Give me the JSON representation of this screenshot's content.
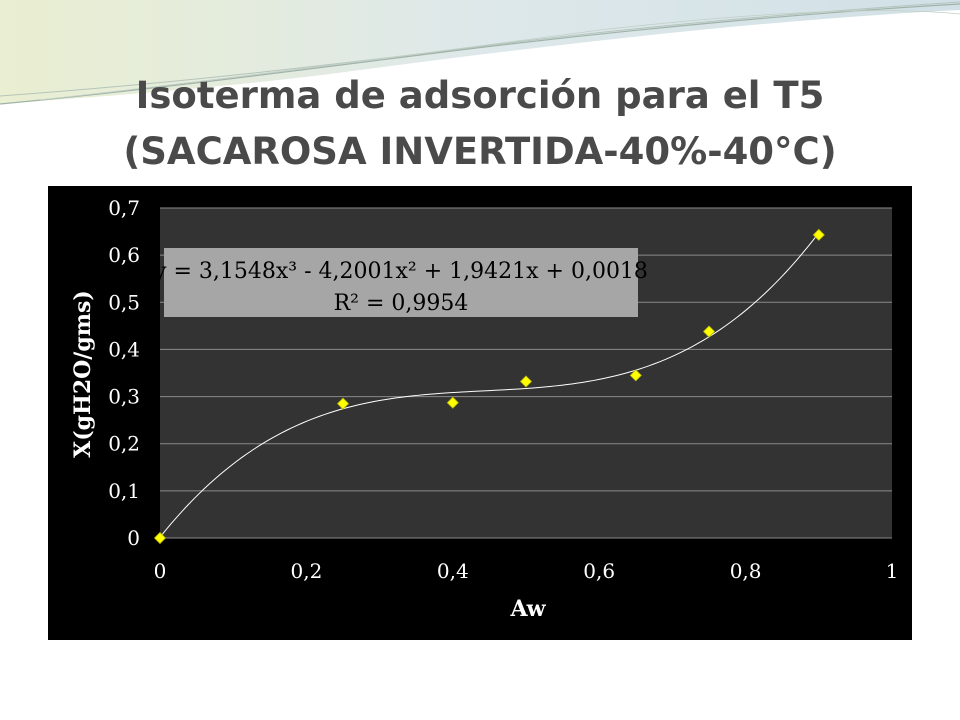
{
  "slide": {
    "title_line1": "Isoterma de adsorción para el T5",
    "title_line2": "(SACAROSA INVERTIDA-40%-40°C)"
  },
  "colors": {
    "background": "#000000",
    "plot_area": "#333333",
    "gridlines": "#8a8a8a",
    "markers": "#ffff00",
    "trendline": "#ffffff",
    "label_box": "#a6a6a6",
    "title_text": "#4a4a4a"
  },
  "chart_data": {
    "type": "scatter",
    "title": "",
    "xlabel": "Aw",
    "ylabel": "X(gH2O/gms)",
    "xlim": [
      0,
      1
    ],
    "ylim": [
      0,
      0.7
    ],
    "x_ticks": [
      "0",
      "0,2",
      "0,4",
      "0,6",
      "0,8",
      "1"
    ],
    "y_ticks": [
      "0",
      "0,1",
      "0,2",
      "0,3",
      "0,4",
      "0,5",
      "0,6",
      "0,7"
    ],
    "grid": "horizontal",
    "legend": "none",
    "marker": "diamond",
    "series": [
      {
        "x": [
          0,
          0.25,
          0.4,
          0.5,
          0.65,
          0.75,
          0.9
        ],
        "y": [
          0,
          0.285,
          0.287,
          0.332,
          0.345,
          0.438,
          0.643
        ]
      }
    ],
    "trendline": {
      "type": "polynomial",
      "order": 3,
      "coefficients": [
        3.1548,
        -4.2001,
        1.9421,
        0.0018
      ],
      "equation": "y = 3,1548x³ - 4,2001x² + 1,9421x + 0,0018",
      "r_squared": "R² = 0,9954"
    }
  }
}
